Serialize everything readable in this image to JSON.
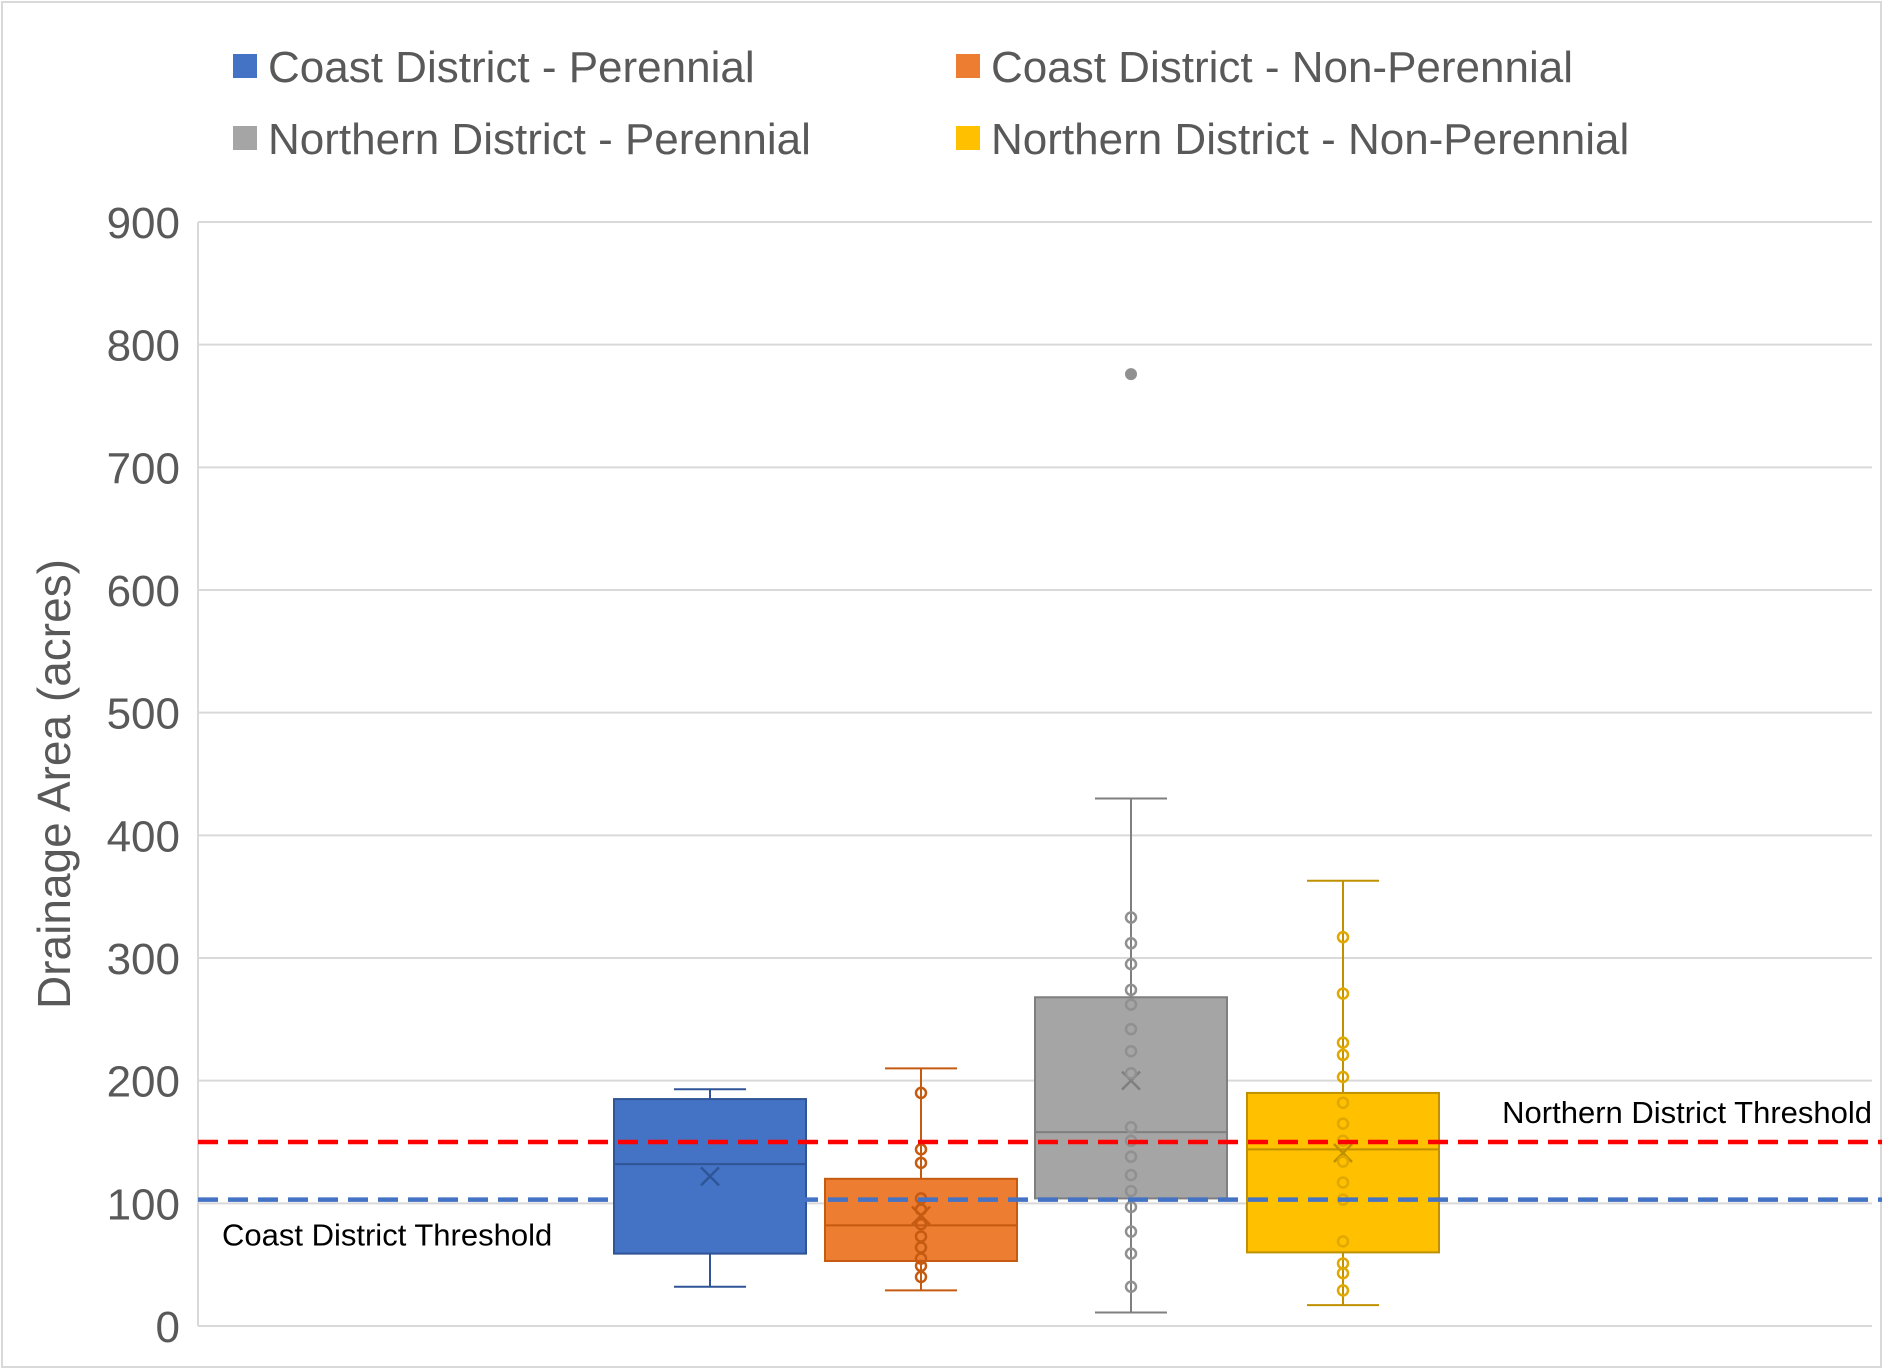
{
  "chart_data": {
    "type": "box",
    "xlabel": "",
    "ylabel": "Drainage Area (acres)",
    "ylim": [
      0,
      900
    ],
    "yticks": [
      0,
      100,
      200,
      300,
      400,
      500,
      600,
      700,
      800,
      900
    ],
    "grid": true,
    "legend_position": "top",
    "series": [
      {
        "name": "Coast District - Perennial",
        "color": "#4472C4",
        "stats": {
          "min": 32,
          "q1": 59,
          "median": 132,
          "q3": 185,
          "max": 193,
          "mean": 122
        },
        "points": [],
        "outliers": []
      },
      {
        "name": "Coast District - Non-Perennial",
        "color": "#ED7D31",
        "stats": {
          "min": 29,
          "q1": 53,
          "median": 82,
          "q3": 120,
          "max": 210,
          "mean": 90
        },
        "points": [
          190,
          144,
          133,
          104,
          95,
          83,
          73,
          64,
          55,
          49,
          40
        ],
        "outliers": []
      },
      {
        "name": "Northern District - Perennial",
        "color": "#A5A5A5",
        "stats": {
          "min": 11,
          "q1": 104,
          "median": 158,
          "q3": 268,
          "max": 430,
          "mean": 200
        },
        "points": [
          333,
          312,
          295,
          274,
          262,
          242,
          224,
          206,
          162,
          151,
          138,
          123,
          110,
          97,
          77,
          59,
          32
        ],
        "outliers": [
          776
        ]
      },
      {
        "name": "Northern District - Non-Perennial",
        "color": "#FFC000",
        "stats": {
          "min": 17,
          "q1": 60,
          "median": 144,
          "q3": 190,
          "max": 363,
          "mean": 141
        },
        "points": [
          317,
          271,
          231,
          221,
          203,
          182,
          165,
          151,
          134,
          117,
          103,
          69,
          51,
          43,
          29
        ],
        "outliers": []
      }
    ],
    "reference_lines": [
      {
        "label": "Northern District Threshold",
        "value": 150,
        "color": "#FF0000"
      },
      {
        "label": "Coast District Threshold",
        "value": 103,
        "color": "#4472C4"
      }
    ]
  }
}
